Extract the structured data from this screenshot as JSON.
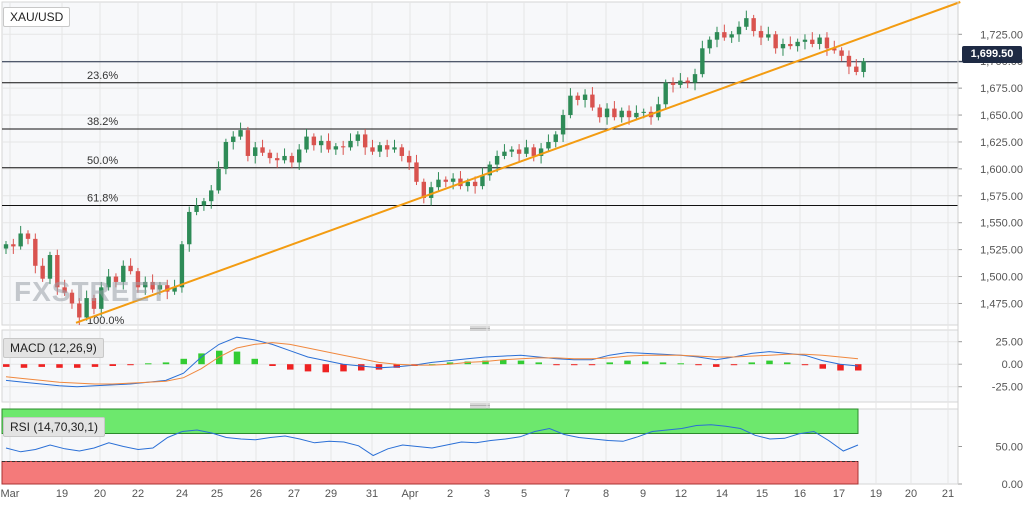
{
  "symbol": "XAU/USD",
  "price_tag": "1,699.50",
  "watermark": "FXSTREET",
  "indicators": {
    "macd": "MACD (12,26,9)",
    "rsi": "RSI (14,70,30,1)"
  },
  "colors": {
    "up": "#2e8b57",
    "down": "#d9534f",
    "trendline": "#f39c12",
    "macd_line": "#2a6fd6",
    "signal_line": "#f0883e",
    "hist_up": "#33cc33",
    "hist_down": "#ee2222",
    "rsi_overbought": "#6de86d",
    "rsi_oversold": "#f47a7a",
    "rsi_line": "#2a6fd6"
  },
  "chart_data": [
    {
      "type": "candlestick",
      "title": "XAU/USD",
      "ylim": [
        1455,
        1755
      ],
      "y_ticks": [
        "1,475.00",
        "1,500.00",
        "1,525.00",
        "1,550.00",
        "1,575.00",
        "1,600.00",
        "1,625.00",
        "1,650.00",
        "1,675.00",
        "1,700.00",
        "1,725.00"
      ],
      "x_ticks": [
        "Mar",
        "19",
        "20",
        "22",
        "24",
        "25",
        "26",
        "27",
        "29",
        "31",
        "Apr",
        "2",
        "3",
        "5",
        "7",
        "8",
        "9",
        "12",
        "14",
        "15",
        "16",
        "17",
        "19",
        "20",
        "21"
      ],
      "fib_levels": [
        {
          "label": "23.6%",
          "value": 1680
        },
        {
          "label": "38.2%",
          "value": 1637
        },
        {
          "label": "50.0%",
          "value": 1601
        },
        {
          "label": "61.8%",
          "value": 1566
        },
        {
          "label": "100.0%",
          "value": 1452
        }
      ],
      "last_price": 1699.5,
      "trendline": {
        "from": [
          0,
          1452
        ],
        "to": [
          107,
          1755
        ]
      },
      "closes": [
        1530,
        1528,
        1540,
        1535,
        1510,
        1498,
        1520,
        1490,
        1485,
        1475,
        1462,
        1480,
        1470,
        1490,
        1500,
        1495,
        1510,
        1505,
        1490,
        1495,
        1488,
        1492,
        1486,
        1490,
        1530,
        1560,
        1566,
        1570,
        1580,
        1600,
        1625,
        1630,
        1636,
        1612,
        1620,
        1615,
        1610,
        1608,
        1612,
        1606,
        1618,
        1630,
        1622,
        1626,
        1618,
        1621,
        1620,
        1626,
        1632,
        1620,
        1616,
        1622,
        1618,
        1620,
        1612,
        1606,
        1588,
        1573,
        1583,
        1590,
        1588,
        1591,
        1584,
        1588,
        1584,
        1594,
        1604,
        1612,
        1616,
        1618,
        1614,
        1620,
        1612,
        1619,
        1625,
        1632,
        1650,
        1668,
        1664,
        1669,
        1657,
        1648,
        1656,
        1648,
        1654,
        1648,
        1652,
        1653,
        1648,
        1660,
        1680,
        1678,
        1682,
        1680,
        1688,
        1712,
        1720,
        1727,
        1722,
        1725,
        1732,
        1740,
        1728,
        1722,
        1725,
        1712,
        1716,
        1714,
        1718,
        1720,
        1716,
        1722,
        1712,
        1710,
        1705,
        1695,
        1690,
        1700
      ]
    },
    {
      "type": "line",
      "title": "MACD (12,26,9)",
      "ylim": [
        -42,
        38
      ],
      "y_ticks": [
        "25.00",
        "0.00",
        "-25.00"
      ],
      "series": [
        {
          "name": "MACD",
          "values": [
            -18,
            -20,
            -22,
            -24,
            -25,
            -24,
            -23,
            -22,
            -20,
            -18,
            -10,
            8,
            22,
            30,
            27,
            22,
            15,
            8,
            4,
            0,
            -2,
            -4,
            -3,
            -1,
            2,
            4,
            6,
            8,
            9,
            10,
            8,
            6,
            5,
            5,
            10,
            13,
            12,
            11,
            10,
            8,
            5,
            8,
            12,
            14,
            12,
            10,
            4,
            0,
            -2
          ]
        },
        {
          "name": "Signal",
          "values": [
            -14,
            -16,
            -18,
            -20,
            -21,
            -22,
            -22,
            -21,
            -20,
            -19,
            -15,
            -5,
            8,
            18,
            22,
            24,
            22,
            18,
            14,
            10,
            6,
            2,
            0,
            -1,
            -1,
            0,
            2,
            3,
            5,
            6,
            7,
            7,
            6,
            6,
            7,
            9,
            10,
            10,
            10,
            9,
            8,
            8,
            9,
            10,
            11,
            11,
            10,
            8,
            6
          ]
        }
      ],
      "histogram": [
        -3,
        -4,
        -3,
        -4,
        -4,
        -3,
        -2,
        -1,
        1,
        2,
        6,
        12,
        15,
        14,
        6,
        -2,
        -6,
        -8,
        -9,
        -8,
        -7,
        -6,
        -4,
        -2,
        0,
        2,
        3,
        4,
        5,
        4,
        2,
        -1,
        -1,
        -1,
        2,
        4,
        3,
        2,
        1,
        -1,
        -3,
        -1,
        2,
        4,
        2,
        -1,
        -5,
        -7,
        -7
      ]
    },
    {
      "type": "line",
      "title": "RSI (14,70,30,1)",
      "ylim": [
        0,
        100
      ],
      "y_ticks": [
        "50.00",
        "0.00"
      ],
      "overbought": 70,
      "oversold": 30,
      "series": [
        {
          "name": "RSI",
          "values": [
            48,
            43,
            46,
            52,
            47,
            44,
            48,
            55,
            50,
            46,
            48,
            62,
            70,
            72,
            68,
            62,
            60,
            59,
            62,
            64,
            60,
            55,
            57,
            56,
            51,
            38,
            47,
            52,
            50,
            48,
            52,
            56,
            55,
            58,
            60,
            63,
            70,
            74,
            66,
            62,
            60,
            58,
            57,
            63,
            70,
            72,
            74,
            78,
            79,
            77,
            74,
            65,
            60,
            61,
            67,
            70,
            58,
            44,
            52
          ]
        }
      ]
    }
  ]
}
